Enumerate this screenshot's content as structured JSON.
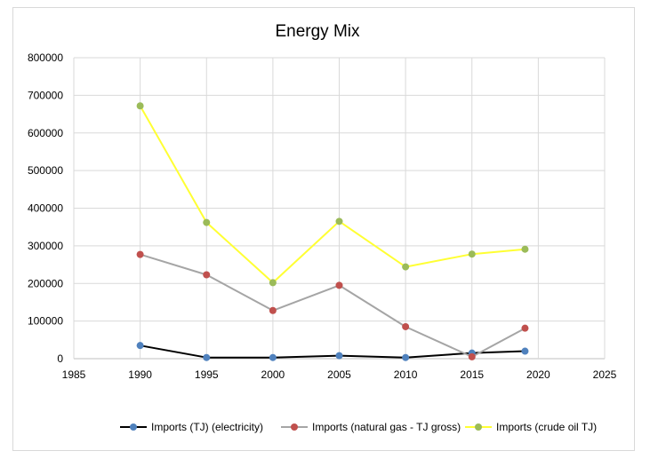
{
  "chart_data": {
    "type": "scatter",
    "title": "Energy Mix",
    "xlabel": "",
    "ylabel": "",
    "xlim": [
      1985,
      2025
    ],
    "ylim": [
      0,
      800000
    ],
    "x_ticks": [
      1985,
      1990,
      1995,
      2000,
      2005,
      2010,
      2015,
      2020,
      2025
    ],
    "y_ticks": [
      0,
      100000,
      200000,
      300000,
      400000,
      500000,
      600000,
      700000,
      800000
    ],
    "x": [
      1990,
      1995,
      2000,
      2005,
      2010,
      2015,
      2019
    ],
    "grid": true,
    "legend_position": "bottom",
    "series": [
      {
        "name": "Imports (TJ) (electricity)",
        "values": [
          35000,
          3000,
          3000,
          8000,
          3000,
          15000,
          20000
        ],
        "line_color": "#000000",
        "marker_color": "#4f81bd"
      },
      {
        "name": "Imports (natural gas - TJ gross)",
        "values": [
          277000,
          223000,
          128000,
          195000,
          85000,
          5000,
          81000
        ],
        "line_color": "#a5a5a5",
        "marker_color": "#c0504d"
      },
      {
        "name": "Imports (crude oil TJ)",
        "values": [
          672000,
          362000,
          202000,
          365000,
          244000,
          278000,
          291000
        ],
        "line_color": "#ffff33",
        "marker_color": "#9bbb59"
      }
    ]
  }
}
